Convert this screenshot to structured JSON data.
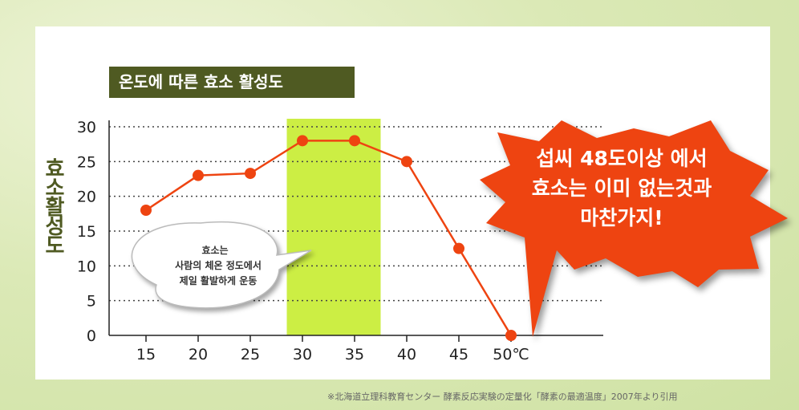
{
  "chart_data": {
    "type": "line",
    "title": "온도에 따른 효소 활성도",
    "ylabel": "효소활성도",
    "xlabel": "",
    "x": [
      15,
      20,
      25,
      30,
      35,
      40,
      45,
      50
    ],
    "x_tick_labels": [
      "15",
      "20",
      "25",
      "30",
      "35",
      "40",
      "45",
      "50℃"
    ],
    "y_ticks": [
      "0",
      "5",
      "10",
      "15",
      "20",
      "25",
      "30"
    ],
    "ylim": [
      0,
      30
    ],
    "series": [
      {
        "values": [
          18,
          23,
          23.3,
          28,
          28,
          25,
          12.5,
          0
        ]
      }
    ],
    "highlight_band": {
      "x_from": 28.5,
      "x_to": 37.5
    },
    "grid": "horizontal-dotted",
    "line_color": "#ee4411",
    "highlight_color": "#ccee44"
  },
  "bubble": {
    "lines": [
      "효소는",
      "사람의 체온 정도에서",
      "제일 활발하게 운동"
    ]
  },
  "burst": {
    "lines": [
      "섭씨 48도이상 에서",
      "효소는 이미 없는것과",
      "마찬가지!"
    ],
    "color": "#ee4411"
  },
  "source_note": "※北海道立理科教育センター 酵素反応実験の定量化「酵素の最適温度」2007年より引用"
}
